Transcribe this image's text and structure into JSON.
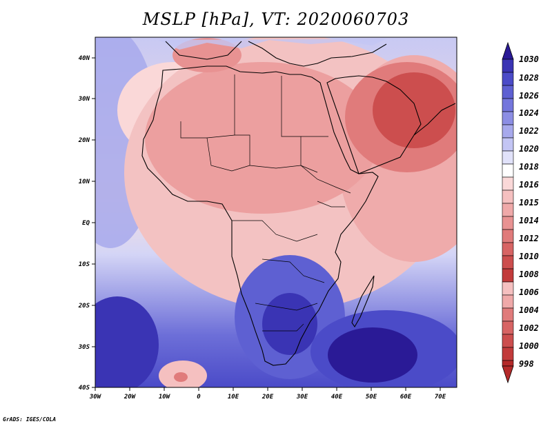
{
  "title": "MSLP [hPa], VT: 2020060703",
  "footer": "GrADS: IGES/COLA",
  "map": {
    "projection": "latlon",
    "lon_range": [
      -30,
      75
    ],
    "lat_range": [
      -40,
      45
    ],
    "lon_ticks": [
      "30W",
      "20W",
      "10W",
      "0",
      "10E",
      "20E",
      "30E",
      "40E",
      "50E",
      "60E",
      "70E"
    ],
    "lat_ticks": [
      "40S",
      "30S",
      "20S",
      "10S",
      "EQ",
      "10N",
      "20N",
      "30N",
      "40N"
    ]
  },
  "colorbar": {
    "labels": [
      "1030",
      "1028",
      "1026",
      "1024",
      "1022",
      "1020",
      "1018",
      "1016",
      "1015",
      "1014",
      "1012",
      "1010",
      "1008",
      "1006",
      "1004",
      "1002",
      "1000",
      "998"
    ],
    "colors": [
      "#2a1a96",
      "#3a34b4",
      "#4b4bc8",
      "#5e60d2",
      "#7476dc",
      "#8c8ee4",
      "#a7a9ec",
      "#c3c5f4",
      "#e1e2fa",
      "#ffffff",
      "#fad8d8",
      "#f5c0c0",
      "#efa9a9",
      "#e89292",
      "#e07b7b",
      "#d76464",
      "#cc4e4e",
      "#c23b3b",
      "#b42a2a"
    ]
  }
}
